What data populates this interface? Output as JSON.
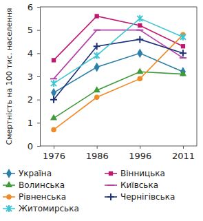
{
  "chart_data": {
    "type": "line",
    "ylabel": "Смертність на 100 тис. населення",
    "categories": [
      "1976",
      "1986",
      "1996",
      "2011"
    ],
    "ylim": [
      0,
      6
    ],
    "yticks": [
      0,
      1,
      2,
      3,
      4,
      5,
      6
    ],
    "grid": false,
    "legend": "bottom",
    "series": [
      {
        "name": "Україна",
        "color": "#2b7fa8",
        "marker": "diamond",
        "values": [
          2.3,
          3.4,
          4.0,
          3.2
        ]
      },
      {
        "name": "Вінницька",
        "color": "#c0186e",
        "marker": "square",
        "values": [
          3.7,
          5.6,
          5.2,
          4.3
        ]
      },
      {
        "name": "Волинська",
        "color": "#3f9a3a",
        "marker": "triangle",
        "values": [
          1.2,
          2.4,
          3.2,
          3.1
        ]
      },
      {
        "name": "Київська",
        "color": "#b03fa8",
        "marker": "dash",
        "values": [
          2.9,
          5.0,
          5.0,
          3.8
        ]
      },
      {
        "name": "Рівненська",
        "color": "#f08a24",
        "marker": "circle",
        "values": [
          0.7,
          2.1,
          2.9,
          4.8
        ]
      },
      {
        "name": "Чернігівська",
        "color": "#1b2f7a",
        "marker": "plus",
        "values": [
          2.0,
          4.3,
          4.6,
          4.0
        ]
      },
      {
        "name": "Житомирська",
        "color": "#3fc5d2",
        "marker": "x",
        "values": [
          2.7,
          3.9,
          5.5,
          4.7
        ]
      }
    ]
  }
}
